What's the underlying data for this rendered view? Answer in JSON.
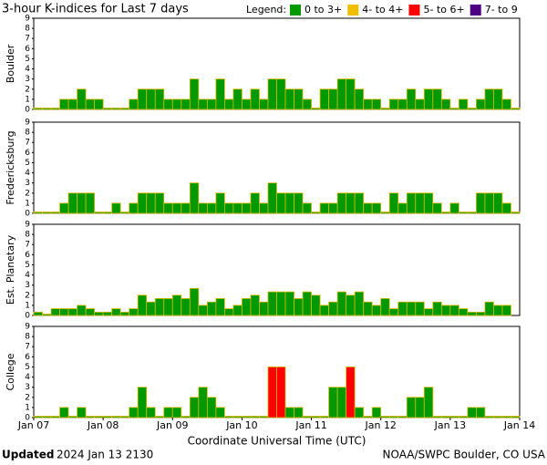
{
  "title": "3-hour K-indices for Last 7 days",
  "legend": {
    "title": "Legend:",
    "items": [
      {
        "label": "0 to 3+",
        "color": "#009900"
      },
      {
        "label": "4- to 4+",
        "color": "#f0c000"
      },
      {
        "label": "5- to 6+",
        "color": "#ff0000"
      },
      {
        "label": "7- to 9",
        "color": "#4b0082"
      }
    ]
  },
  "footer": {
    "updated_label": "Updated",
    "updated": "2024 Jan 13 2130",
    "source": "NOAA/SWPC Boulder, CO USA"
  },
  "chart_data": [
    {
      "type": "bar",
      "y_label": "Boulder",
      "xlim": [
        0,
        56
      ],
      "ylim": [
        0,
        9
      ],
      "yticks": [
        0,
        1,
        2,
        3,
        4,
        5,
        6,
        7,
        8,
        9
      ],
      "values": [
        0,
        0,
        0,
        1,
        1,
        2,
        1,
        1,
        0,
        0,
        0,
        1,
        2,
        2,
        2,
        1,
        1,
        1,
        3,
        1,
        1,
        3,
        1,
        2,
        1,
        2,
        1,
        3,
        3,
        2,
        2,
        1,
        0,
        2,
        2,
        3,
        3,
        2,
        1,
        1,
        0,
        1,
        1,
        2,
        1,
        2,
        2,
        1,
        0,
        1,
        0,
        1,
        2,
        2,
        1,
        0
      ]
    },
    {
      "type": "bar",
      "y_label": "Fredericksburg",
      "xlim": [
        0,
        56
      ],
      "ylim": [
        0,
        9
      ],
      "yticks": [
        0,
        1,
        2,
        3,
        4,
        5,
        6,
        7,
        8,
        9
      ],
      "values": [
        0,
        0,
        0,
        1,
        2,
        2,
        2,
        0,
        0,
        1,
        0,
        1,
        2,
        2,
        2,
        1,
        1,
        1,
        3,
        1,
        1,
        2,
        1,
        1,
        1,
        2,
        1,
        3,
        2,
        2,
        2,
        1,
        0,
        1,
        1,
        2,
        2,
        2,
        1,
        1,
        0,
        2,
        1,
        2,
        2,
        2,
        1,
        0,
        1,
        0,
        0,
        2,
        2,
        2,
        1,
        0
      ]
    },
    {
      "type": "bar",
      "y_label": "Est. Planetary",
      "xlim": [
        0,
        56
      ],
      "ylim": [
        0,
        9
      ],
      "yticks": [
        0,
        1,
        2,
        3,
        4,
        5,
        6,
        7,
        8,
        9
      ],
      "values": [
        0.33,
        0,
        0.67,
        0.67,
        0.67,
        1,
        0.67,
        0.33,
        0.33,
        0.67,
        0.33,
        0.67,
        2,
        1.33,
        1.67,
        1.67,
        2,
        1.67,
        2.67,
        1,
        1.33,
        1.67,
        0.67,
        1,
        1.67,
        2,
        1.33,
        2.33,
        2.33,
        2.33,
        1.67,
        2.33,
        2,
        1,
        1.33,
        2.33,
        2,
        2.33,
        1.33,
        1,
        1.67,
        0.67,
        1.33,
        1.33,
        1.33,
        0.67,
        1.33,
        1,
        1,
        0.67,
        0.33,
        0.33,
        1.33,
        1,
        1,
        null
      ]
    },
    {
      "type": "bar",
      "y_label": "College",
      "x_label": "Coordinate Universal Time (UTC)",
      "xlim": [
        0,
        56
      ],
      "ylim": [
        0,
        9
      ],
      "yticks": [
        0,
        1,
        2,
        3,
        4,
        5,
        6,
        7,
        8,
        9
      ],
      "xticks": [
        {
          "value": 0,
          "label": "Jan 07"
        },
        {
          "value": 8,
          "label": "Jan 08"
        },
        {
          "value": 16,
          "label": "Jan 09"
        },
        {
          "value": 24,
          "label": "Jan 10"
        },
        {
          "value": 32,
          "label": "Jan 11"
        },
        {
          "value": 40,
          "label": "Jan 12"
        },
        {
          "value": 48,
          "label": "Jan 13"
        },
        {
          "value": 56,
          "label": "Jan 14"
        }
      ],
      "values": [
        0,
        0,
        0,
        1,
        0,
        1,
        0,
        0,
        0,
        0,
        0,
        1,
        3,
        1,
        0,
        1,
        1,
        0,
        2,
        3,
        2,
        1,
        0,
        0,
        0,
        0,
        0,
        5,
        5,
        1,
        1,
        0,
        0,
        0,
        3,
        3,
        5,
        1,
        0,
        1,
        0,
        0,
        0,
        2,
        2,
        3,
        0,
        0,
        0,
        0,
        1,
        1,
        0,
        0,
        0,
        0
      ]
    }
  ]
}
